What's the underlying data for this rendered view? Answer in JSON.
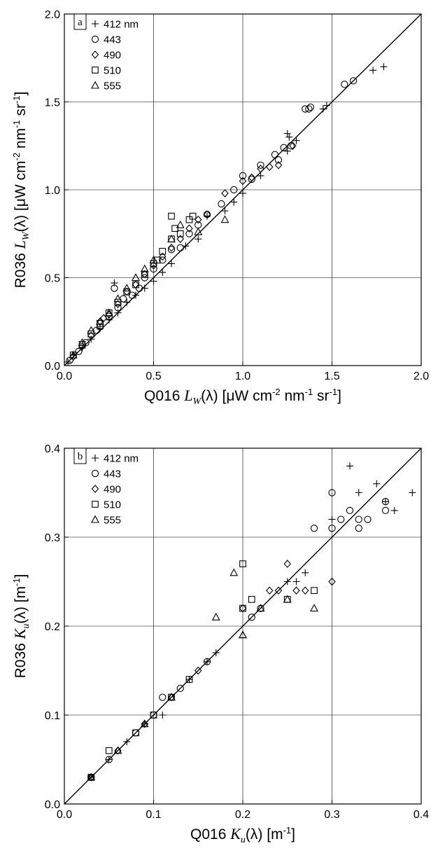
{
  "chart_data": [
    {
      "type": "scatter",
      "panel_label": "a",
      "xlabel_parts": [
        "Q016 ",
        "L",
        "W",
        "(λ) [μW cm",
        "-2",
        " nm",
        "-1",
        " sr",
        "-1",
        "]"
      ],
      "ylabel_parts": [
        "R036 ",
        "L",
        "W",
        "(λ) [μW cm",
        "-2",
        " nm",
        "-1",
        " sr",
        "-1",
        "]"
      ],
      "xlim": [
        0,
        2
      ],
      "ylim": [
        0,
        2
      ],
      "xticks": [
        "0.0",
        "0.5",
        "1.0",
        "1.5",
        "2.0"
      ],
      "yticks": [
        "0.0",
        "0.5",
        "1.0",
        "1.5",
        "2.0"
      ],
      "grid": true,
      "legend_position": "top-left",
      "one_to_one_line": true,
      "series": [
        {
          "name": "412 nm",
          "marker": "plus",
          "points": [
            [
              0.02,
              0.02
            ],
            [
              0.05,
              0.06
            ],
            [
              0.1,
              0.1
            ],
            [
              0.15,
              0.15
            ],
            [
              0.2,
              0.21
            ],
            [
              0.25,
              0.26
            ],
            [
              0.28,
              0.47
            ],
            [
              0.3,
              0.3
            ],
            [
              0.35,
              0.36
            ],
            [
              0.4,
              0.4
            ],
            [
              0.45,
              0.44
            ],
            [
              0.5,
              0.48
            ],
            [
              0.55,
              0.53
            ],
            [
              0.6,
              0.58
            ],
            [
              0.68,
              0.68
            ],
            [
              0.75,
              0.72
            ],
            [
              0.8,
              0.85
            ],
            [
              0.9,
              0.88
            ],
            [
              0.95,
              0.93
            ],
            [
              1.0,
              0.98
            ],
            [
              1.1,
              1.08
            ],
            [
              1.25,
              1.32
            ],
            [
              1.26,
              1.3
            ],
            [
              1.25,
              1.22
            ],
            [
              1.3,
              1.28
            ],
            [
              1.45,
              1.46
            ],
            [
              1.47,
              1.48
            ],
            [
              1.73,
              1.68
            ],
            [
              1.79,
              1.7
            ]
          ]
        },
        {
          "name": "443",
          "marker": "circle",
          "points": [
            [
              0.03,
              0.03
            ],
            [
              0.08,
              0.08
            ],
            [
              0.12,
              0.13
            ],
            [
              0.18,
              0.2
            ],
            [
              0.2,
              0.22
            ],
            [
              0.25,
              0.28
            ],
            [
              0.28,
              0.44
            ],
            [
              0.3,
              0.33
            ],
            [
              0.33,
              0.38
            ],
            [
              0.38,
              0.4
            ],
            [
              0.42,
              0.44
            ],
            [
              0.45,
              0.5
            ],
            [
              0.5,
              0.55
            ],
            [
              0.55,
              0.6
            ],
            [
              0.6,
              0.66
            ],
            [
              0.65,
              0.67
            ],
            [
              0.7,
              0.75
            ],
            [
              0.75,
              0.8
            ],
            [
              0.8,
              0.86
            ],
            [
              0.88,
              0.92
            ],
            [
              0.95,
              1.0
            ],
            [
              1.0,
              1.08
            ],
            [
              1.05,
              1.06
            ],
            [
              1.1,
              1.14
            ],
            [
              1.18,
              1.2
            ],
            [
              1.2,
              1.17
            ],
            [
              1.23,
              1.24
            ],
            [
              1.27,
              1.25
            ],
            [
              1.35,
              1.46
            ],
            [
              1.37,
              1.46
            ],
            [
              1.38,
              1.47
            ],
            [
              1.57,
              1.6
            ],
            [
              1.62,
              1.62
            ]
          ]
        },
        {
          "name": "490",
          "marker": "diamond",
          "points": [
            [
              0.05,
              0.05
            ],
            [
              0.1,
              0.11
            ],
            [
              0.15,
              0.17
            ],
            [
              0.2,
              0.25
            ],
            [
              0.22,
              0.27
            ],
            [
              0.25,
              0.29
            ],
            [
              0.3,
              0.35
            ],
            [
              0.35,
              0.42
            ],
            [
              0.4,
              0.46
            ],
            [
              0.45,
              0.52
            ],
            [
              0.5,
              0.57
            ],
            [
              0.55,
              0.62
            ],
            [
              0.6,
              0.67
            ],
            [
              0.65,
              0.72
            ],
            [
              0.7,
              0.78
            ],
            [
              0.75,
              0.83
            ],
            [
              0.8,
              0.86
            ],
            [
              0.9,
              0.98
            ],
            [
              1.0,
              1.05
            ],
            [
              1.05,
              1.07
            ],
            [
              1.1,
              1.12
            ],
            [
              1.15,
              1.13
            ],
            [
              1.2,
              1.14
            ],
            [
              1.28,
              1.25
            ]
          ]
        },
        {
          "name": "510",
          "marker": "square",
          "points": [
            [
              0.05,
              0.06
            ],
            [
              0.1,
              0.12
            ],
            [
              0.15,
              0.18
            ],
            [
              0.2,
              0.24
            ],
            [
              0.25,
              0.3
            ],
            [
              0.3,
              0.36
            ],
            [
              0.35,
              0.42
            ],
            [
              0.4,
              0.46
            ],
            [
              0.45,
              0.52
            ],
            [
              0.5,
              0.58
            ],
            [
              0.52,
              0.6
            ],
            [
              0.55,
              0.65
            ],
            [
              0.6,
              0.72
            ],
            [
              0.6,
              0.85
            ],
            [
              0.62,
              0.78
            ],
            [
              0.65,
              0.75
            ],
            [
              0.7,
              0.83
            ],
            [
              0.72,
              0.85
            ]
          ]
        },
        {
          "name": "555",
          "marker": "triangle",
          "points": [
            [
              0.05,
              0.06
            ],
            [
              0.1,
              0.13
            ],
            [
              0.15,
              0.2
            ],
            [
              0.2,
              0.25
            ],
            [
              0.25,
              0.3
            ],
            [
              0.3,
              0.38
            ],
            [
              0.35,
              0.44
            ],
            [
              0.4,
              0.5
            ],
            [
              0.45,
              0.55
            ],
            [
              0.5,
              0.6
            ],
            [
              0.6,
              0.72
            ],
            [
              0.65,
              0.8
            ],
            [
              0.75,
              0.76
            ],
            [
              0.9,
              0.83
            ]
          ]
        }
      ]
    },
    {
      "type": "scatter",
      "panel_label": "b",
      "xlabel_parts": [
        "Q016 ",
        "K",
        "u",
        "(λ) [m",
        "-1",
        "]"
      ],
      "ylabel_parts": [
        "R036 ",
        "K",
        "u",
        "(λ) [m",
        "-1",
        "]"
      ],
      "xlim": [
        0,
        0.4
      ],
      "ylim": [
        0,
        0.4
      ],
      "xticks": [
        "0.0",
        "0.1",
        "0.2",
        "0.3",
        "0.4"
      ],
      "yticks": [
        "0.0",
        "0.1",
        "0.2",
        "0.3",
        "0.4"
      ],
      "grid": true,
      "legend_position": "top-left",
      "one_to_one_line": true,
      "series": [
        {
          "name": "412 nm",
          "marker": "plus",
          "points": [
            [
              0.03,
              0.03
            ],
            [
              0.05,
              0.05
            ],
            [
              0.07,
              0.07
            ],
            [
              0.09,
              0.09
            ],
            [
              0.11,
              0.1
            ],
            [
              0.14,
              0.14
            ],
            [
              0.16,
              0.16
            ],
            [
              0.17,
              0.17
            ],
            [
              0.25,
              0.25
            ],
            [
              0.26,
              0.25
            ],
            [
              0.27,
              0.26
            ],
            [
              0.3,
              0.32
            ],
            [
              0.32,
              0.38
            ],
            [
              0.33,
              0.35
            ],
            [
              0.35,
              0.36
            ],
            [
              0.36,
              0.34
            ],
            [
              0.37,
              0.33
            ],
            [
              0.39,
              0.35
            ]
          ]
        },
        {
          "name": "443",
          "marker": "circle",
          "points": [
            [
              0.03,
              0.03
            ],
            [
              0.05,
              0.05
            ],
            [
              0.08,
              0.08
            ],
            [
              0.1,
              0.1
            ],
            [
              0.11,
              0.12
            ],
            [
              0.13,
              0.13
            ],
            [
              0.16,
              0.16
            ],
            [
              0.21,
              0.21
            ],
            [
              0.22,
              0.22
            ],
            [
              0.28,
              0.31
            ],
            [
              0.3,
              0.31
            ],
            [
              0.3,
              0.35
            ],
            [
              0.31,
              0.32
            ],
            [
              0.32,
              0.33
            ],
            [
              0.33,
              0.31
            ],
            [
              0.33,
              0.32
            ],
            [
              0.34,
              0.32
            ],
            [
              0.36,
              0.34
            ],
            [
              0.36,
              0.33
            ]
          ]
        },
        {
          "name": "490",
          "marker": "diamond",
          "points": [
            [
              0.03,
              0.03
            ],
            [
              0.06,
              0.06
            ],
            [
              0.09,
              0.09
            ],
            [
              0.12,
              0.12
            ],
            [
              0.15,
              0.15
            ],
            [
              0.2,
              0.22
            ],
            [
              0.23,
              0.24
            ],
            [
              0.24,
              0.24
            ],
            [
              0.25,
              0.27
            ],
            [
              0.26,
              0.24
            ],
            [
              0.27,
              0.24
            ],
            [
              0.3,
              0.25
            ]
          ]
        },
        {
          "name": "510",
          "marker": "square",
          "points": [
            [
              0.03,
              0.03
            ],
            [
              0.05,
              0.06
            ],
            [
              0.08,
              0.08
            ],
            [
              0.1,
              0.1
            ],
            [
              0.12,
              0.12
            ],
            [
              0.14,
              0.14
            ],
            [
              0.2,
              0.27
            ],
            [
              0.2,
              0.22
            ],
            [
              0.21,
              0.23
            ],
            [
              0.25,
              0.23
            ],
            [
              0.28,
              0.24
            ]
          ]
        },
        {
          "name": "555",
          "marker": "triangle",
          "points": [
            [
              0.03,
              0.03
            ],
            [
              0.06,
              0.06
            ],
            [
              0.09,
              0.09
            ],
            [
              0.12,
              0.12
            ],
            [
              0.17,
              0.21
            ],
            [
              0.19,
              0.26
            ],
            [
              0.2,
              0.19
            ],
            [
              0.2,
              0.19
            ],
            [
              0.22,
              0.22
            ],
            [
              0.25,
              0.23
            ],
            [
              0.28,
              0.22
            ]
          ]
        }
      ]
    }
  ]
}
